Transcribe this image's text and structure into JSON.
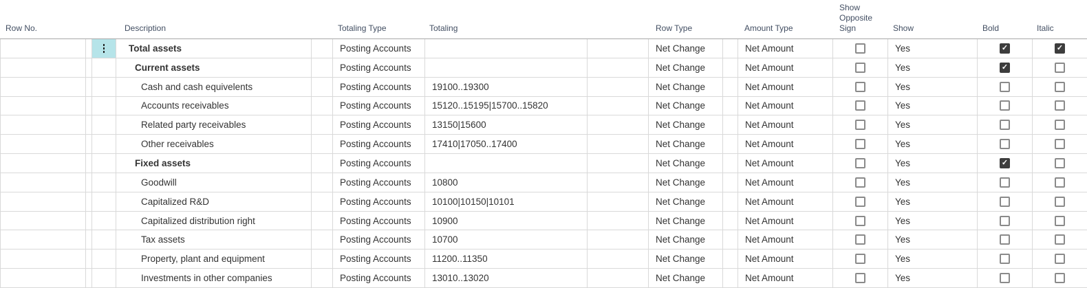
{
  "columns": {
    "row_no": "Row No.",
    "description": "Description",
    "totaling_type": "Totaling Type",
    "totaling": "Totaling",
    "row_type": "Row Type",
    "amount_type": "Amount Type",
    "show_opposite_sign": "Show Opposite Sign",
    "show": "Show",
    "bold": "Bold",
    "italic": "Italic"
  },
  "icons": {
    "row_marker": "vertical-ellipsis-icon",
    "checked_glyph": "checkmark"
  },
  "colors": {
    "selected_marker_bg": "#b6e4e9",
    "checkbox_checked_bg": "#3d3d3d",
    "checkbox_border": "#8a8a8a",
    "header_text": "#424e62",
    "cell_text": "#333333",
    "bold_text": "#1b1b1b",
    "grid_border": "#d9d9d9",
    "header_bottom_border": "#a8a8a8"
  },
  "table": {
    "rows": [
      {
        "row_no": "",
        "description": "Total assets",
        "indent": 0,
        "bold_text": true,
        "selected": true,
        "totaling_type": "Posting Accounts",
        "totaling": "",
        "row_type": "Net Change",
        "amount_type": "Net Amount",
        "show_opposite_sign": false,
        "show": "Yes",
        "bold": true,
        "italic": true
      },
      {
        "row_no": "",
        "description": "Current assets",
        "indent": 1,
        "bold_text": true,
        "selected": false,
        "totaling_type": "Posting Accounts",
        "totaling": "",
        "row_type": "Net Change",
        "amount_type": "Net Amount",
        "show_opposite_sign": false,
        "show": "Yes",
        "bold": true,
        "italic": false
      },
      {
        "row_no": "",
        "description": "Cash and cash equivelents",
        "indent": 2,
        "bold_text": false,
        "selected": false,
        "totaling_type": "Posting Accounts",
        "totaling": "19100..19300",
        "row_type": "Net Change",
        "amount_type": "Net Amount",
        "show_opposite_sign": false,
        "show": "Yes",
        "bold": false,
        "italic": false
      },
      {
        "row_no": "",
        "description": "Accounts receivables",
        "indent": 2,
        "bold_text": false,
        "selected": false,
        "totaling_type": "Posting Accounts",
        "totaling": "15120..15195|15700..15820",
        "row_type": "Net Change",
        "amount_type": "Net Amount",
        "show_opposite_sign": false,
        "show": "Yes",
        "bold": false,
        "italic": false
      },
      {
        "row_no": "",
        "description": "Related party receivables",
        "indent": 2,
        "bold_text": false,
        "selected": false,
        "totaling_type": "Posting Accounts",
        "totaling": "13150|15600",
        "row_type": "Net Change",
        "amount_type": "Net Amount",
        "show_opposite_sign": false,
        "show": "Yes",
        "bold": false,
        "italic": false
      },
      {
        "row_no": "",
        "description": "Other receivables",
        "indent": 2,
        "bold_text": false,
        "selected": false,
        "totaling_type": "Posting Accounts",
        "totaling": "17410|17050..17400",
        "row_type": "Net Change",
        "amount_type": "Net Amount",
        "show_opposite_sign": false,
        "show": "Yes",
        "bold": false,
        "italic": false
      },
      {
        "row_no": "",
        "description": "Fixed assets",
        "indent": 1,
        "bold_text": true,
        "selected": false,
        "totaling_type": "Posting Accounts",
        "totaling": "",
        "row_type": "Net Change",
        "amount_type": "Net Amount",
        "show_opposite_sign": false,
        "show": "Yes",
        "bold": true,
        "italic": false
      },
      {
        "row_no": "",
        "description": "Goodwill",
        "indent": 2,
        "bold_text": false,
        "selected": false,
        "totaling_type": "Posting Accounts",
        "totaling": "10800",
        "row_type": "Net Change",
        "amount_type": "Net Amount",
        "show_opposite_sign": false,
        "show": "Yes",
        "bold": false,
        "italic": false
      },
      {
        "row_no": "",
        "description": "Capitalized R&D",
        "indent": 2,
        "bold_text": false,
        "selected": false,
        "totaling_type": "Posting Accounts",
        "totaling": "10100|10150|10101",
        "row_type": "Net Change",
        "amount_type": "Net Amount",
        "show_opposite_sign": false,
        "show": "Yes",
        "bold": false,
        "italic": false
      },
      {
        "row_no": "",
        "description": "Capitalized distribution right",
        "indent": 2,
        "bold_text": false,
        "selected": false,
        "totaling_type": "Posting Accounts",
        "totaling": "10900",
        "row_type": "Net Change",
        "amount_type": "Net Amount",
        "show_opposite_sign": false,
        "show": "Yes",
        "bold": false,
        "italic": false
      },
      {
        "row_no": "",
        "description": "Tax assets",
        "indent": 2,
        "bold_text": false,
        "selected": false,
        "totaling_type": "Posting Accounts",
        "totaling": "10700",
        "row_type": "Net Change",
        "amount_type": "Net Amount",
        "show_opposite_sign": false,
        "show": "Yes",
        "bold": false,
        "italic": false
      },
      {
        "row_no": "",
        "description": "Property, plant and equipment",
        "indent": 2,
        "bold_text": false,
        "selected": false,
        "totaling_type": "Posting Accounts",
        "totaling": "11200..11350",
        "row_type": "Net Change",
        "amount_type": "Net Amount",
        "show_opposite_sign": false,
        "show": "Yes",
        "bold": false,
        "italic": false
      },
      {
        "row_no": "",
        "description": "Investments in other companies",
        "indent": 2,
        "bold_text": false,
        "selected": false,
        "totaling_type": "Posting Accounts",
        "totaling": "13010..13020",
        "row_type": "Net Change",
        "amount_type": "Net Amount",
        "show_opposite_sign": false,
        "show": "Yes",
        "bold": false,
        "italic": false
      }
    ]
  }
}
